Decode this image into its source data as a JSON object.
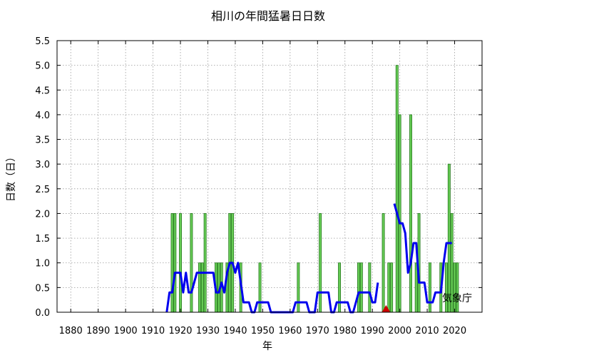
{
  "chart_data": {
    "type": "bar",
    "title": "相川の年間猛暑日日数",
    "xlabel": "年",
    "ylabel": "日数（日）",
    "credit": "気象庁",
    "xlim": [
      1875,
      2030
    ],
    "ylim": [
      0,
      5.5
    ],
    "x_ticks": [
      "1880",
      "1890",
      "1900",
      "1910",
      "1920",
      "1930",
      "1940",
      "1950",
      "1960",
      "1970",
      "1980",
      "1990",
      "2000",
      "2010",
      "2020"
    ],
    "y_ticks": [
      "0.0",
      "0.5",
      "1.0",
      "1.5",
      "2.0",
      "2.5",
      "3.0",
      "3.5",
      "4.0",
      "4.5",
      "5.0",
      "5.5"
    ],
    "grid": true,
    "bar_color": "#66cc55",
    "line_color": "#0000ee",
    "marker_color": "#cc0000",
    "bars": [
      {
        "x": 1917,
        "y": 2
      },
      {
        "x": 1918,
        "y": 2
      },
      {
        "x": 1920,
        "y": 2
      },
      {
        "x": 1924,
        "y": 2
      },
      {
        "x": 1927,
        "y": 1
      },
      {
        "x": 1928,
        "y": 1
      },
      {
        "x": 1929,
        "y": 2
      },
      {
        "x": 1933,
        "y": 1
      },
      {
        "x": 1934,
        "y": 1
      },
      {
        "x": 1935,
        "y": 1
      },
      {
        "x": 1937,
        "y": 1
      },
      {
        "x": 1938,
        "y": 2
      },
      {
        "x": 1939,
        "y": 2
      },
      {
        "x": 1942,
        "y": 1
      },
      {
        "x": 1949,
        "y": 1
      },
      {
        "x": 1963,
        "y": 1
      },
      {
        "x": 1971,
        "y": 2
      },
      {
        "x": 1978,
        "y": 1
      },
      {
        "x": 1985,
        "y": 1
      },
      {
        "x": 1986,
        "y": 1
      },
      {
        "x": 1989,
        "y": 1
      },
      {
        "x": 1994,
        "y": 2
      },
      {
        "x": 1996,
        "y": 1
      },
      {
        "x": 1997,
        "y": 1
      },
      {
        "x": 1999,
        "y": 5
      },
      {
        "x": 2000,
        "y": 4
      },
      {
        "x": 2004,
        "y": 4
      },
      {
        "x": 2006,
        "y": 1
      },
      {
        "x": 2007,
        "y": 2
      },
      {
        "x": 2011,
        "y": 1
      },
      {
        "x": 2015,
        "y": 1
      },
      {
        "x": 2017,
        "y": 1
      },
      {
        "x": 2018,
        "y": 3
      },
      {
        "x": 2019,
        "y": 2
      },
      {
        "x": 2020,
        "y": 1
      },
      {
        "x": 2021,
        "y": 1
      }
    ],
    "moving_average": [
      {
        "x": [
          1915,
          1916,
          1917,
          1918,
          1919,
          1920,
          1921,
          1922,
          1923,
          1924,
          1925,
          1926,
          1927,
          1928,
          1929,
          1930,
          1931,
          1932,
          1933,
          1934,
          1935,
          1936,
          1937,
          1938,
          1939,
          1940,
          1941,
          1942,
          1943,
          1944,
          1945,
          1946,
          1947,
          1948,
          1949,
          1950,
          1951,
          1952,
          1953,
          1954,
          1955,
          1956,
          1957,
          1958,
          1959,
          1960,
          1961,
          1962,
          1963,
          1964,
          1965,
          1966,
          1967,
          1968,
          1969,
          1970,
          1971,
          1972,
          1973,
          1974,
          1975,
          1976,
          1977,
          1978,
          1979,
          1980,
          1981,
          1982,
          1983,
          1984,
          1985,
          1986,
          1987,
          1988,
          1989,
          1990,
          1991,
          1992
        ],
        "y": [
          0.0,
          0.4,
          0.4,
          0.8,
          0.8,
          0.8,
          0.4,
          0.8,
          0.4,
          0.4,
          0.6,
          0.8,
          0.8,
          0.8,
          0.8,
          0.8,
          0.8,
          0.8,
          0.4,
          0.4,
          0.6,
          0.4,
          0.8,
          1.0,
          1.0,
          0.8,
          1.0,
          0.6,
          0.2,
          0.2,
          0.2,
          0.0,
          0.0,
          0.2,
          0.2,
          0.2,
          0.2,
          0.2,
          0.0,
          0.0,
          0.0,
          0.0,
          0.0,
          0.0,
          0.0,
          0.0,
          0.0,
          0.2,
          0.2,
          0.2,
          0.2,
          0.2,
          0.0,
          0.0,
          0.0,
          0.4,
          0.4,
          0.4,
          0.4,
          0.4,
          0.0,
          0.0,
          0.2,
          0.2,
          0.2,
          0.2,
          0.2,
          0.0,
          0.0,
          0.2,
          0.4,
          0.4,
          0.4,
          0.4,
          0.4,
          0.2,
          0.2,
          0.6
        ]
      },
      {
        "x": [
          1998,
          1999,
          2000,
          2001,
          2002,
          2003,
          2004,
          2005,
          2006,
          2007,
          2008,
          2009,
          2010,
          2011,
          2012,
          2013,
          2014,
          2015,
          2016,
          2017,
          2018,
          2019
        ],
        "y": [
          2.2,
          2.0,
          1.8,
          1.8,
          1.6,
          0.8,
          1.0,
          1.4,
          1.4,
          0.6,
          0.6,
          0.6,
          0.2,
          0.2,
          0.2,
          0.4,
          0.4,
          0.4,
          1.0,
          1.4,
          1.4,
          1.4
        ]
      }
    ],
    "marker": {
      "x": 1995,
      "y": 0
    }
  }
}
